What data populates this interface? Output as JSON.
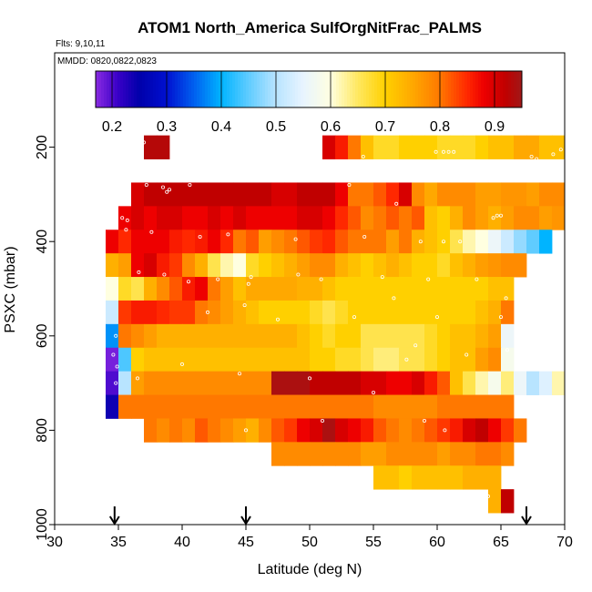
{
  "chart_data": {
    "type": "heatmap",
    "title": "ATOM1 North_America SulfOrgNitFrac_PALMS",
    "flights_label": "Flts: 9,10,11",
    "dates_label": "MMDD: 0820,0822,0823",
    "xlabel": "Latitude (deg N)",
    "ylabel": "PSXC (mbar)",
    "xlim": [
      30,
      70
    ],
    "ylim": [
      1000,
      0
    ],
    "x_ticks": [
      "30",
      "35",
      "40",
      "45",
      "50",
      "55",
      "60",
      "65",
      "70"
    ],
    "y_ticks": [
      "200",
      "400",
      "600",
      "800",
      "1000"
    ],
    "colorbar": {
      "range": [
        0.17,
        0.95
      ],
      "ticks": [
        "0.2",
        "0.3",
        "0.4",
        "0.5",
        "0.6",
        "0.7",
        "0.8",
        "0.9"
      ],
      "stops": [
        {
          "v": 0.17,
          "c": "#8a2be2"
        },
        {
          "v": 0.21,
          "c": "#3a00c8"
        },
        {
          "v": 0.25,
          "c": "#0000aa"
        },
        {
          "v": 0.3,
          "c": "#0010d0"
        },
        {
          "v": 0.35,
          "c": "#0060f0"
        },
        {
          "v": 0.4,
          "c": "#00b4ff"
        },
        {
          "v": 0.45,
          "c": "#60ccff"
        },
        {
          "v": 0.5,
          "c": "#b8e4ff"
        },
        {
          "v": 0.55,
          "c": "#e8f4ff"
        },
        {
          "v": 0.6,
          "c": "#ffffe0"
        },
        {
          "v": 0.65,
          "c": "#ffe860"
        },
        {
          "v": 0.7,
          "c": "#ffd000"
        },
        {
          "v": 0.75,
          "c": "#ffa800"
        },
        {
          "v": 0.8,
          "c": "#ff7800"
        },
        {
          "v": 0.85,
          "c": "#ff2800"
        },
        {
          "v": 0.88,
          "c": "#ee0000"
        },
        {
          "v": 0.92,
          "c": "#c00000"
        },
        {
          "v": 0.95,
          "c": "#a01818"
        }
      ]
    },
    "flight_markers_lat": [
      34.7,
      45,
      67
    ],
    "x_bin_width": 1,
    "rows": [
      {
        "p": 200,
        "cells": [
          [
            37,
            0.93,
            0.93
          ],
          [
            51,
            0.9,
            0.86
          ],
          [
            53,
            0.8,
            0.72,
            0.68,
            0.68,
            0.7,
            0.7,
            0.7,
            0.68,
            0.68,
            0.68,
            0.7,
            0.72,
            0.72,
            0.75,
            0.75,
            0.72,
            0.72
          ]
        ]
      },
      {
        "p": 300,
        "cells": [
          [
            36,
            0.9,
            0.92,
            0.92,
            0.92,
            0.92,
            0.92,
            0.92,
            0.92,
            0.92,
            0.92,
            0.92,
            0.9,
            0.9,
            0.92,
            0.92,
            0.92,
            0.88,
            0.8,
            0.8,
            0.82,
            0.85,
            0.9,
            0.78,
            0.75,
            0.78,
            0.78,
            0.78,
            0.76,
            0.76,
            0.77,
            0.77,
            0.76,
            0.78,
            0.78
          ]
        ]
      },
      {
        "p": 350,
        "cells": [
          [
            35,
            0.88,
            0.9,
            0.88,
            0.9,
            0.9,
            0.88,
            0.88,
            0.9,
            0.88,
            0.9,
            0.88,
            0.88,
            0.88,
            0.88,
            0.9,
            0.9,
            0.88,
            0.85,
            0.82,
            0.78,
            0.8,
            0.82,
            0.8,
            0.82,
            0.72,
            0.7,
            0.74,
            0.78,
            0.76,
            0.74,
            0.76,
            0.78,
            0.78,
            0.76,
            0.77
          ]
        ]
      },
      {
        "p": 400,
        "cells": [
          [
            34,
            0.88,
            0.85,
            0.88,
            0.88,
            0.88,
            0.86,
            0.85,
            0.86,
            0.88,
            0.85,
            0.8,
            0.82,
            0.76,
            0.78,
            0.8,
            0.82,
            0.84,
            0.85,
            0.82,
            0.8,
            0.8,
            0.8,
            0.76,
            0.8,
            0.74,
            0.72,
            0.7,
            0.66,
            0.62,
            0.6,
            0.56,
            0.52,
            0.48,
            0.45,
            0.4
          ]
        ]
      },
      {
        "p": 450,
        "cells": [
          [
            34,
            0.74,
            0.76,
            0.88,
            0.9,
            0.86,
            0.84,
            0.78,
            0.74,
            0.66,
            0.62,
            0.6,
            0.68,
            0.7,
            0.72,
            0.74,
            0.76,
            0.78,
            0.78,
            0.74,
            0.72,
            0.7,
            0.72,
            0.74,
            0.72,
            0.7,
            0.7,
            0.68,
            0.72,
            0.74,
            0.76,
            0.77,
            0.78,
            0.78
          ]
        ]
      },
      {
        "p": 500,
        "cells": [
          [
            34,
            0.6,
            0.68,
            0.66,
            0.74,
            0.78,
            0.82,
            0.86,
            0.88,
            0.8,
            0.76,
            0.72,
            0.75,
            0.75,
            0.75,
            0.75,
            0.74,
            0.74,
            0.72,
            0.7,
            0.7,
            0.7,
            0.7,
            0.7,
            0.7,
            0.7,
            0.7,
            0.7,
            0.7,
            0.7,
            0.7,
            0.72,
            0.72
          ]
        ]
      },
      {
        "p": 550,
        "cells": [
          [
            34,
            0.52,
            0.84,
            0.86,
            0.86,
            0.85,
            0.84,
            0.84,
            0.8,
            0.78,
            0.76,
            0.74,
            0.72,
            0.7,
            0.7,
            0.7,
            0.7,
            0.68,
            0.66,
            0.68,
            0.7,
            0.7,
            0.7,
            0.7,
            0.7,
            0.7,
            0.7,
            0.7,
            0.7,
            0.7,
            0.72,
            0.74,
            0.8
          ]
        ]
      },
      {
        "p": 600,
        "cells": [
          [
            34,
            0.38,
            0.8,
            0.78,
            0.76,
            0.74,
            0.74,
            0.74,
            0.74,
            0.74,
            0.74,
            0.74,
            0.74,
            0.74,
            0.74,
            0.74,
            0.72,
            0.7,
            0.68,
            0.7,
            0.7,
            0.66,
            0.66,
            0.66,
            0.66,
            0.66,
            0.68,
            0.7,
            0.72,
            0.72,
            0.74,
            0.76,
            0.56
          ]
        ]
      },
      {
        "p": 650,
        "cells": [
          [
            34,
            0.18,
            0.44,
            0.7,
            0.72,
            0.72,
            0.72,
            0.72,
            0.72,
            0.72,
            0.72,
            0.72,
            0.72,
            0.72,
            0.72,
            0.72,
            0.72,
            0.7,
            0.7,
            0.68,
            0.68,
            0.66,
            0.64,
            0.64,
            0.66,
            0.66,
            0.68,
            0.7,
            0.72,
            0.72,
            0.76,
            0.78,
            0.58
          ]
        ]
      },
      {
        "p": 700,
        "cells": [
          [
            34,
            0.2,
            0.5,
            0.76,
            0.78,
            0.78,
            0.78,
            0.78,
            0.78,
            0.78,
            0.78,
            0.78,
            0.78,
            0.78,
            0.94,
            0.94,
            0.94,
            0.92,
            0.92,
            0.92,
            0.92,
            0.9,
            0.9,
            0.88,
            0.88,
            0.9,
            0.86,
            0.82,
            0.72,
            0.66,
            0.62,
            0.58,
            0.64,
            0.56,
            0.5,
            0.54,
            0.62
          ]
        ]
      },
      {
        "p": 750,
        "cells": [
          [
            34,
            0.24,
            0.8,
            0.8,
            0.8,
            0.8,
            0.8,
            0.8,
            0.8,
            0.8,
            0.8,
            0.8,
            0.8,
            0.8,
            0.8,
            0.8,
            0.8,
            0.8,
            0.8,
            0.8,
            0.8,
            0.8,
            0.78,
            0.78,
            0.78,
            0.78,
            0.78,
            0.8,
            0.8,
            0.8,
            0.8,
            0.8,
            0.8
          ]
        ]
      },
      {
        "p": 800,
        "cells": [
          [
            37,
            0.8,
            0.78,
            0.8,
            0.78,
            0.82,
            0.8,
            0.78,
            0.76,
            0.74,
            0.78,
            0.82,
            0.84,
            0.88,
            0.9,
            0.94,
            0.9,
            0.88,
            0.86,
            0.82,
            0.8,
            0.78,
            0.8,
            0.82,
            0.84,
            0.86,
            0.9,
            0.92,
            0.88,
            0.84,
            0.8
          ]
        ]
      },
      {
        "p": 850,
        "cells": [
          [
            47,
            0.78,
            0.78,
            0.78,
            0.78,
            0.78,
            0.78,
            0.78,
            0.76,
            0.76,
            0.78,
            0.78,
            0.78,
            0.78,
            0.76,
            0.78,
            0.78,
            0.8,
            0.8,
            0.78
          ]
        ]
      },
      {
        "p": 900,
        "cells": [
          [
            55,
            0.72,
            0.72,
            0.7,
            0.72,
            0.72,
            0.72,
            0.72,
            0.74,
            0.74,
            0.74
          ]
        ]
      },
      {
        "p": 950,
        "cells": [
          [
            64,
            0.74,
            0.92
          ]
        ]
      }
    ],
    "sample_points": [
      [
        35.7,
        190
      ],
      [
        36.2,
        190
      ],
      [
        36.6,
        190
      ],
      [
        37.0,
        190
      ],
      [
        35.6,
        200
      ],
      [
        35.9,
        210
      ],
      [
        35.4,
        220
      ],
      [
        35.8,
        230
      ],
      [
        35.2,
        245
      ],
      [
        35.4,
        260
      ],
      [
        36.0,
        270
      ],
      [
        37.2,
        280
      ],
      [
        38.5,
        285
      ],
      [
        39.0,
        290
      ],
      [
        38.8,
        295
      ],
      [
        40.6,
        280
      ],
      [
        41.8,
        260
      ],
      [
        42.5,
        240
      ],
      [
        42.9,
        240
      ],
      [
        43.4,
        240
      ],
      [
        45.9,
        200
      ],
      [
        47.0,
        210
      ],
      [
        47.3,
        220
      ],
      [
        47.7,
        230
      ],
      [
        47.5,
        265
      ],
      [
        49.4,
        260
      ],
      [
        50.2,
        215
      ],
      [
        51.0,
        250
      ],
      [
        52.4,
        250
      ],
      [
        53.1,
        280
      ],
      [
        54.2,
        220
      ],
      [
        55.5,
        265
      ],
      [
        56.8,
        320
      ],
      [
        57.2,
        245
      ],
      [
        58.4,
        250
      ],
      [
        59.9,
        210
      ],
      [
        60.5,
        210
      ],
      [
        60.9,
        210
      ],
      [
        61.3,
        210
      ],
      [
        61.8,
        235
      ],
      [
        62.4,
        240
      ],
      [
        63.1,
        250
      ],
      [
        64.2,
        260
      ],
      [
        67.4,
        220
      ],
      [
        67.8,
        225
      ],
      [
        68.4,
        230
      ],
      [
        69.1,
        215
      ],
      [
        69.7,
        205
      ],
      [
        64.4,
        350
      ],
      [
        64.7,
        345
      ],
      [
        65.0,
        345
      ],
      [
        35.3,
        350
      ],
      [
        35.7,
        355
      ],
      [
        35.6,
        375
      ],
      [
        37.6,
        380
      ],
      [
        41.4,
        390
      ],
      [
        43.6,
        385
      ],
      [
        48.9,
        395
      ],
      [
        54.3,
        390
      ],
      [
        58.7,
        400
      ],
      [
        60.5,
        400
      ],
      [
        61.8,
        400
      ],
      [
        36.6,
        465
      ],
      [
        38.6,
        470
      ],
      [
        40.5,
        485
      ],
      [
        42.8,
        480
      ],
      [
        45.2,
        490
      ],
      [
        45.4,
        475
      ],
      [
        49.1,
        470
      ],
      [
        50.9,
        480
      ],
      [
        55.7,
        475
      ],
      [
        59.3,
        480
      ],
      [
        63.1,
        480
      ],
      [
        34.8,
        600
      ],
      [
        34.6,
        640
      ],
      [
        34.9,
        665
      ],
      [
        34.8,
        700
      ],
      [
        36.5,
        690
      ],
      [
        40.0,
        660
      ],
      [
        44.5,
        680
      ],
      [
        50.0,
        690
      ],
      [
        55.0,
        720
      ],
      [
        57.6,
        650
      ],
      [
        58.3,
        620
      ],
      [
        62.3,
        640
      ],
      [
        65.5,
        630
      ],
      [
        65.4,
        520
      ],
      [
        53.5,
        560
      ],
      [
        60.0,
        560
      ],
      [
        65.0,
        560
      ],
      [
        51.0,
        780
      ],
      [
        59.0,
        780
      ],
      [
        45.0,
        800
      ],
      [
        60.6,
        800
      ],
      [
        64.0,
        940
      ],
      [
        56.6,
        520
      ],
      [
        44.9,
        535
      ],
      [
        42.0,
        550
      ],
      [
        47.5,
        565
      ]
    ]
  }
}
